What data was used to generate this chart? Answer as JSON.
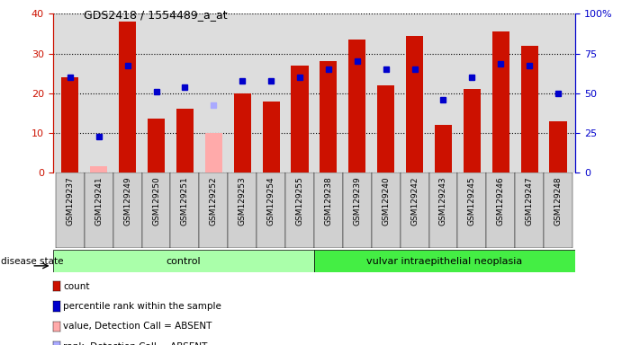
{
  "title": "GDS2418 / 1554489_a_at",
  "samples": [
    "GSM129237",
    "GSM129241",
    "GSM129249",
    "GSM129250",
    "GSM129251",
    "GSM129252",
    "GSM129253",
    "GSM129254",
    "GSM129255",
    "GSM129238",
    "GSM129239",
    "GSM129240",
    "GSM129242",
    "GSM129243",
    "GSM129245",
    "GSM129246",
    "GSM129247",
    "GSM129248"
  ],
  "count_values": [
    24,
    1.5,
    38,
    13.5,
    16,
    10,
    20,
    18,
    27,
    28,
    33.5,
    22,
    34.5,
    12,
    21,
    35.5,
    32,
    13
  ],
  "count_absent": [
    false,
    true,
    false,
    false,
    false,
    true,
    false,
    false,
    false,
    false,
    false,
    false,
    false,
    false,
    false,
    false,
    false,
    false
  ],
  "percentile_values": [
    60,
    22.5,
    67.5,
    51,
    54,
    42.5,
    57.5,
    57.5,
    60,
    65,
    70,
    65,
    65,
    46,
    60,
    68.5,
    67.5,
    50
  ],
  "percentile_absent": [
    false,
    false,
    false,
    false,
    false,
    true,
    false,
    false,
    false,
    false,
    false,
    false,
    false,
    false,
    false,
    false,
    false,
    false
  ],
  "n_control": 9,
  "n_neoplasia": 9,
  "ylim_left": [
    0,
    40
  ],
  "ylim_right": [
    0,
    100
  ],
  "yticks_left": [
    0,
    10,
    20,
    30,
    40
  ],
  "yticks_right": [
    0,
    25,
    50,
    75,
    100
  ],
  "ytick_labels_right": [
    "0",
    "25",
    "50",
    "75",
    "100%"
  ],
  "bar_color_present": "#cc1100",
  "bar_color_absent": "#ffaaaa",
  "dot_color_present": "#0000cc",
  "dot_color_absent": "#aaaaff",
  "control_label": "control",
  "neoplasia_label": "vulvar intraepithelial neoplasia",
  "control_color": "#aaffaa",
  "neoplasia_color": "#44ee44",
  "disease_state_label": "disease state",
  "legend_items": [
    {
      "label": "count",
      "color": "#cc1100"
    },
    {
      "label": "percentile rank within the sample",
      "color": "#0000cc"
    },
    {
      "label": "value, Detection Call = ABSENT",
      "color": "#ffaaaa"
    },
    {
      "label": "rank, Detection Call = ABSENT",
      "color": "#aaaaff"
    }
  ],
  "background_color": "#ffffff",
  "plot_bg_color": "#dddddd",
  "bar_width": 0.6
}
